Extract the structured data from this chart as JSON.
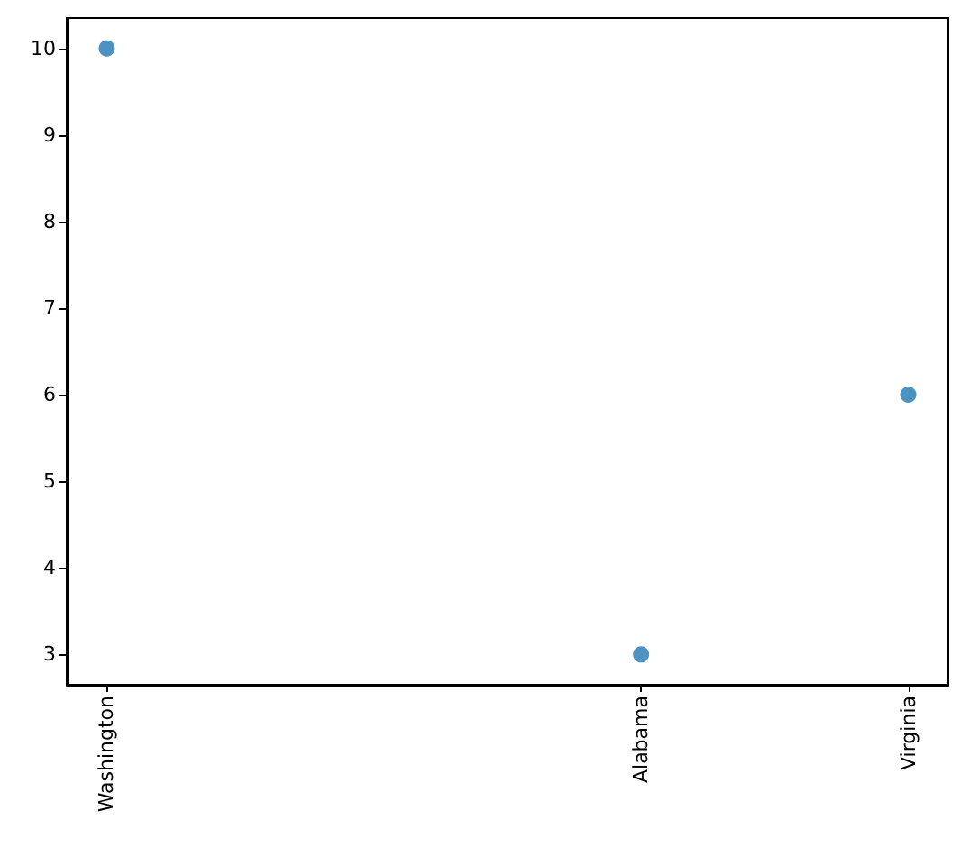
{
  "chart_data": {
    "type": "scatter",
    "categories": [
      "Washington",
      null,
      "Alabama",
      "Virginia"
    ],
    "values": [
      10,
      null,
      3,
      6
    ],
    "color": "#1f77b4",
    "marker": "circle",
    "ylim": [
      2.65,
      10.35
    ],
    "yticks": [
      3,
      4,
      5,
      6,
      7,
      8,
      9,
      10
    ]
  }
}
